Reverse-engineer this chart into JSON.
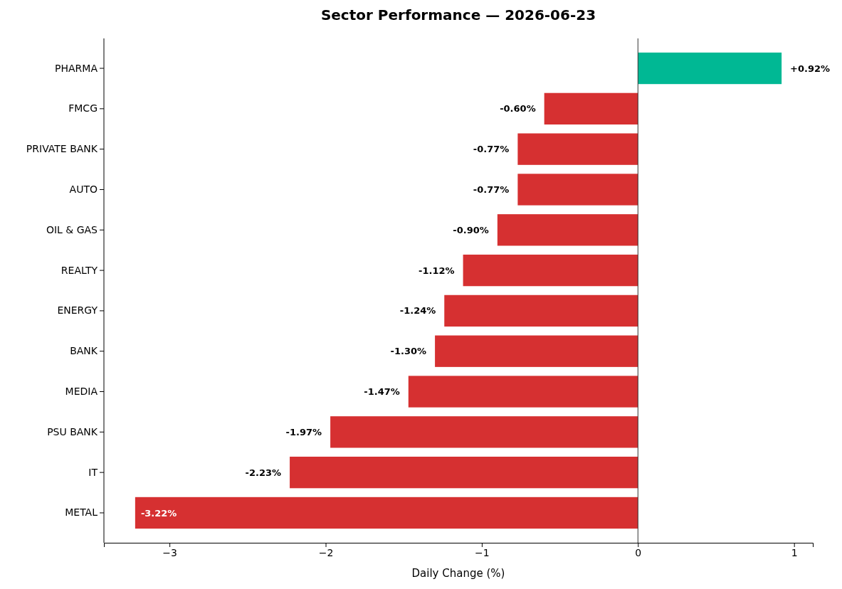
{
  "chart_data": {
    "type": "bar",
    "orientation": "horizontal",
    "title": "Sector Performance — 2026-06-23",
    "xlabel": "Daily Change (%)",
    "categories": [
      "PHARMA",
      "FMCG",
      "PRIVATE BANK",
      "AUTO",
      "OIL & GAS",
      "REALTY",
      "ENERGY",
      "BANK",
      "MEDIA",
      "PSU BANK",
      "IT",
      "METAL"
    ],
    "values": [
      0.92,
      -0.6,
      -0.77,
      -0.77,
      -0.9,
      -1.12,
      -1.24,
      -1.3,
      -1.47,
      -1.97,
      -2.23,
      -3.22
    ],
    "colors": [
      "#00b894",
      "#d63031",
      "#d63031",
      "#d63031",
      "#d63031",
      "#d63031",
      "#d63031",
      "#d63031",
      "#d63031",
      "#d63031",
      "#d63031",
      "#d63031"
    ],
    "value_labels": [
      "+0.92%",
      "-0.60%",
      "-0.77%",
      "-0.77%",
      "-0.90%",
      "-1.12%",
      "-1.24%",
      "-1.30%",
      "-1.47%",
      "-1.97%",
      "-2.23%",
      "-3.22%"
    ],
    "xlim": [
      -3.42,
      1.12
    ],
    "xticks": [
      {
        "value": -3,
        "label": "−3"
      },
      {
        "value": -2,
        "label": "−2"
      },
      {
        "value": -1,
        "label": "−1"
      },
      0,
      1
    ],
    "ref_lines": [
      {
        "axis": "x",
        "value": 0,
        "color": "#333333"
      }
    ],
    "grid": false
  }
}
